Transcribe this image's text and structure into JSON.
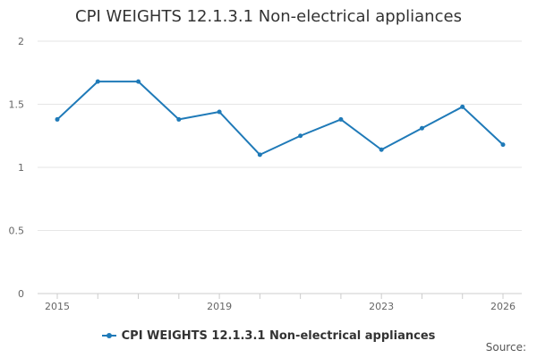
{
  "chart_data": {
    "type": "line",
    "title": "CPI WEIGHTS 12.1.3.1 Non-electrical appliances",
    "xlabel": "",
    "ylabel": "",
    "x": [
      2015,
      2016,
      2017,
      2018,
      2019,
      2020,
      2021,
      2022,
      2023,
      2024,
      2025,
      2026
    ],
    "series": [
      {
        "name": "CPI WEIGHTS 12.1.3.1 Non-electrical appliances",
        "values": [
          1.38,
          1.68,
          1.68,
          1.38,
          1.44,
          1.1,
          1.25,
          1.38,
          1.14,
          1.31,
          1.48,
          1.18
        ]
      }
    ],
    "ylim": [
      0,
      2
    ],
    "yticks": [
      "0",
      "0.5",
      "1",
      "1.5",
      "2"
    ],
    "xticks": [
      "2015",
      "2019",
      "2023",
      "2026"
    ],
    "grid": true,
    "legend": "bottom-center",
    "line_color": "#1f7ab8",
    "grid_color": "#e6e6e6",
    "axis_color": "#cccccc"
  },
  "source_label": "Source:"
}
